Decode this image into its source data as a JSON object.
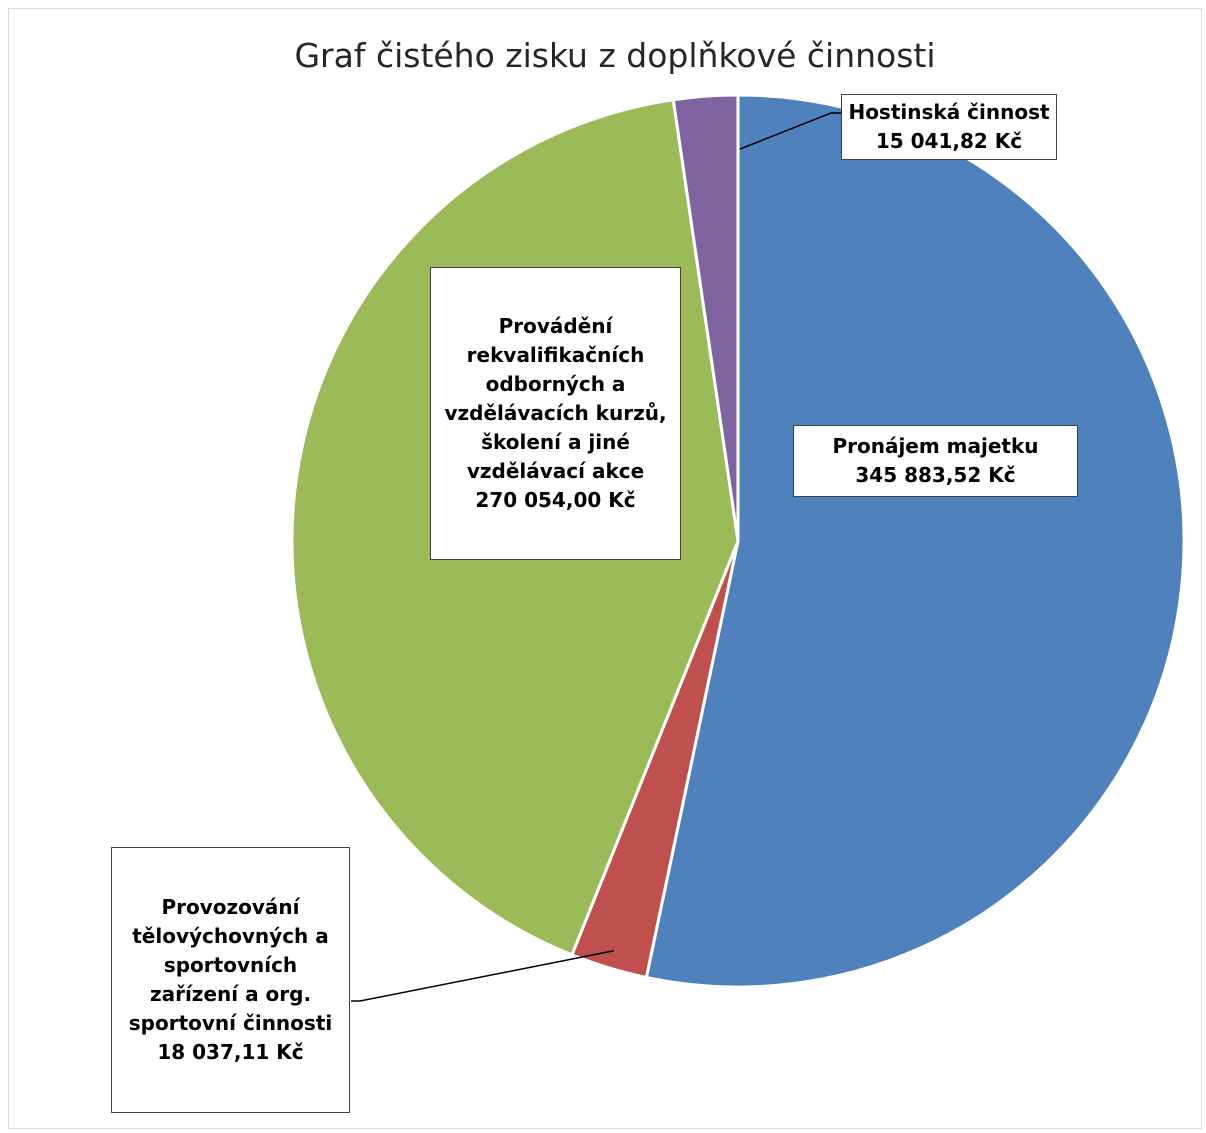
{
  "chart_data": {
    "type": "pie",
    "title": "Graf čistého zisku z doplňkové činnosti",
    "start_angle_deg": 0,
    "direction": "clockwise",
    "slices": [
      {
        "name": "Pronájem majetku",
        "value_label": "345 883,52 Kč",
        "value": 345883.52,
        "color": "#4F81BD"
      },
      {
        "name": "Provozování tělovýchovných a sportovních zařízení a org. sportovní činnosti",
        "value_label": "18 037,11 Kč",
        "value": 18037.11,
        "color": "#C0504D"
      },
      {
        "name": "Provádění rekvalifikačních odborných a vzdělávacích kurzů, školení a jiné vzdělávací akce",
        "value_label": "270 054,00 Kč",
        "value": 270054.0,
        "color": "#9BBB59"
      },
      {
        "name": "Hostinská činnost",
        "value_label": "15 041,82 Kč",
        "value": 15041.82,
        "color": "#8064A2"
      }
    ]
  }
}
